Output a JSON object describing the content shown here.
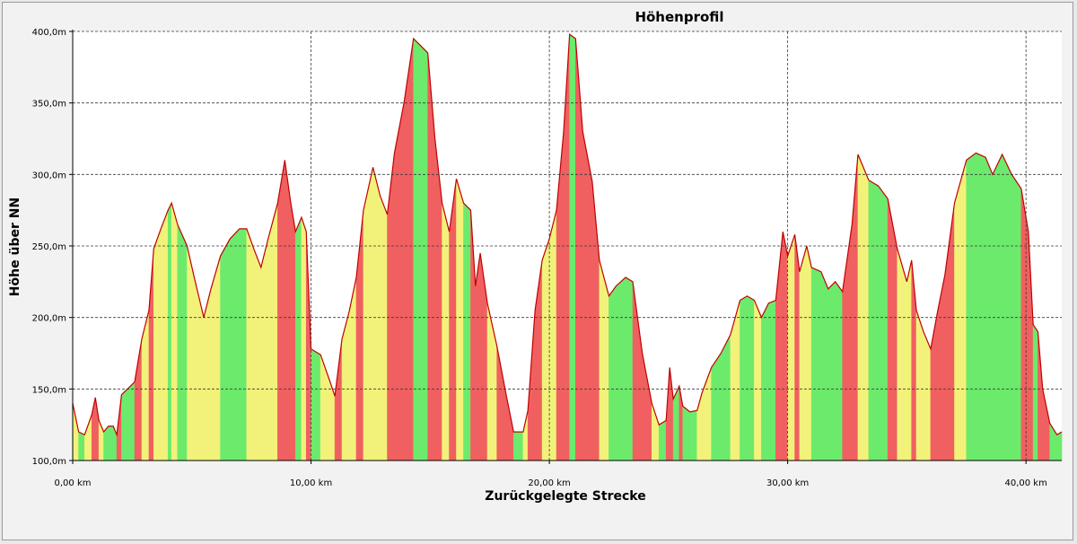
{
  "chart_data": {
    "type": "area",
    "title": "Höhenprofil",
    "xlabel": "Zurückgelegte Strecke",
    "ylabel": "Höhe über NN",
    "xlim": [
      0,
      41.5
    ],
    "ylim": [
      100,
      400
    ],
    "x_ticks": [
      {
        "value": 0,
        "label": "0,00 km"
      },
      {
        "value": 10,
        "label": "10,00 km"
      },
      {
        "value": 20,
        "label": "20,00 km"
      },
      {
        "value": 30,
        "label": "30,00 km"
      },
      {
        "value": 40,
        "label": "40,00 km"
      }
    ],
    "y_ticks": [
      {
        "value": 100,
        "label": "100,0m"
      },
      {
        "value": 150,
        "label": "150,0m"
      },
      {
        "value": 200,
        "label": "200,0m"
      },
      {
        "value": 250,
        "label": "250,0m"
      },
      {
        "value": 300,
        "label": "300,0m"
      },
      {
        "value": 350,
        "label": "350,0m"
      },
      {
        "value": 400,
        "label": "400,0m"
      }
    ],
    "grid": true,
    "colors": {
      "steep": "#f06060",
      "moderate": "#f2f27a",
      "flat": "#6cea6c",
      "outline": "#c00000"
    },
    "points": [
      [
        0.0,
        140
      ],
      [
        0.25,
        120
      ],
      [
        0.5,
        118
      ],
      [
        0.8,
        132
      ],
      [
        0.95,
        144
      ],
      [
        1.1,
        128
      ],
      [
        1.3,
        120
      ],
      [
        1.5,
        124
      ],
      [
        1.7,
        124
      ],
      [
        1.85,
        118
      ],
      [
        2.05,
        146
      ],
      [
        2.3,
        150
      ],
      [
        2.6,
        155
      ],
      [
        2.9,
        185
      ],
      [
        3.2,
        205
      ],
      [
        3.4,
        248
      ],
      [
        3.7,
        262
      ],
      [
        4.0,
        275
      ],
      [
        4.15,
        280
      ],
      [
        4.4,
        265
      ],
      [
        4.8,
        250
      ],
      [
        5.1,
        228
      ],
      [
        5.5,
        200
      ],
      [
        5.8,
        220
      ],
      [
        6.2,
        243
      ],
      [
        6.6,
        255
      ],
      [
        7.0,
        262
      ],
      [
        7.3,
        262
      ],
      [
        7.6,
        248
      ],
      [
        7.9,
        235
      ],
      [
        8.2,
        255
      ],
      [
        8.6,
        280
      ],
      [
        8.9,
        310
      ],
      [
        9.15,
        280
      ],
      [
        9.35,
        260
      ],
      [
        9.6,
        270
      ],
      [
        9.8,
        260
      ],
      [
        10.0,
        178
      ],
      [
        10.4,
        174
      ],
      [
        10.8,
        155
      ],
      [
        11.0,
        145
      ],
      [
        11.3,
        185
      ],
      [
        11.6,
        204
      ],
      [
        11.9,
        228
      ],
      [
        12.2,
        275
      ],
      [
        12.6,
        305
      ],
      [
        12.9,
        285
      ],
      [
        13.2,
        272
      ],
      [
        13.5,
        315
      ],
      [
        13.9,
        350
      ],
      [
        14.3,
        395
      ],
      [
        14.6,
        390
      ],
      [
        14.9,
        385
      ],
      [
        15.2,
        325
      ],
      [
        15.5,
        280
      ],
      [
        15.8,
        260
      ],
      [
        16.1,
        297
      ],
      [
        16.4,
        280
      ],
      [
        16.7,
        275
      ],
      [
        16.9,
        222
      ],
      [
        17.1,
        245
      ],
      [
        17.4,
        210
      ],
      [
        17.8,
        180
      ],
      [
        18.2,
        145
      ],
      [
        18.5,
        120
      ],
      [
        18.9,
        120
      ],
      [
        19.1,
        135
      ],
      [
        19.4,
        205
      ],
      [
        19.7,
        240
      ],
      [
        20.0,
        255
      ],
      [
        20.3,
        275
      ],
      [
        20.6,
        330
      ],
      [
        20.85,
        398
      ],
      [
        21.1,
        395
      ],
      [
        21.4,
        330
      ],
      [
        21.8,
        295
      ],
      [
        22.1,
        240
      ],
      [
        22.5,
        215
      ],
      [
        22.8,
        222
      ],
      [
        23.2,
        228
      ],
      [
        23.5,
        225
      ],
      [
        23.9,
        175
      ],
      [
        24.3,
        140
      ],
      [
        24.6,
        125
      ],
      [
        24.9,
        128
      ],
      [
        25.05,
        165
      ],
      [
        25.2,
        143
      ],
      [
        25.45,
        152
      ],
      [
        25.6,
        138
      ],
      [
        25.9,
        134
      ],
      [
        26.2,
        135
      ],
      [
        26.4,
        147
      ],
      [
        26.8,
        165
      ],
      [
        27.2,
        175
      ],
      [
        27.6,
        188
      ],
      [
        28.0,
        212
      ],
      [
        28.3,
        215
      ],
      [
        28.6,
        212
      ],
      [
        28.9,
        200
      ],
      [
        29.2,
        210
      ],
      [
        29.5,
        212
      ],
      [
        29.8,
        260
      ],
      [
        30.0,
        243
      ],
      [
        30.3,
        258
      ],
      [
        30.5,
        232
      ],
      [
        30.8,
        250
      ],
      [
        31.0,
        235
      ],
      [
        31.4,
        232
      ],
      [
        31.7,
        220
      ],
      [
        32.0,
        225
      ],
      [
        32.3,
        218
      ],
      [
        32.7,
        265
      ],
      [
        32.95,
        314
      ],
      [
        33.4,
        296
      ],
      [
        33.8,
        292
      ],
      [
        34.2,
        283
      ],
      [
        34.6,
        248
      ],
      [
        35.0,
        225
      ],
      [
        35.2,
        240
      ],
      [
        35.4,
        205
      ],
      [
        35.7,
        190
      ],
      [
        36.0,
        178
      ],
      [
        36.3,
        205
      ],
      [
        36.6,
        230
      ],
      [
        37.0,
        280
      ],
      [
        37.5,
        310
      ],
      [
        37.9,
        315
      ],
      [
        38.3,
        312
      ],
      [
        38.6,
        300
      ],
      [
        39.0,
        314
      ],
      [
        39.4,
        300
      ],
      [
        39.8,
        290
      ],
      [
        40.1,
        260
      ],
      [
        40.3,
        195
      ],
      [
        40.5,
        190
      ],
      [
        40.7,
        150
      ],
      [
        41.0,
        126
      ],
      [
        41.3,
        118
      ],
      [
        41.5,
        120
      ]
    ]
  }
}
